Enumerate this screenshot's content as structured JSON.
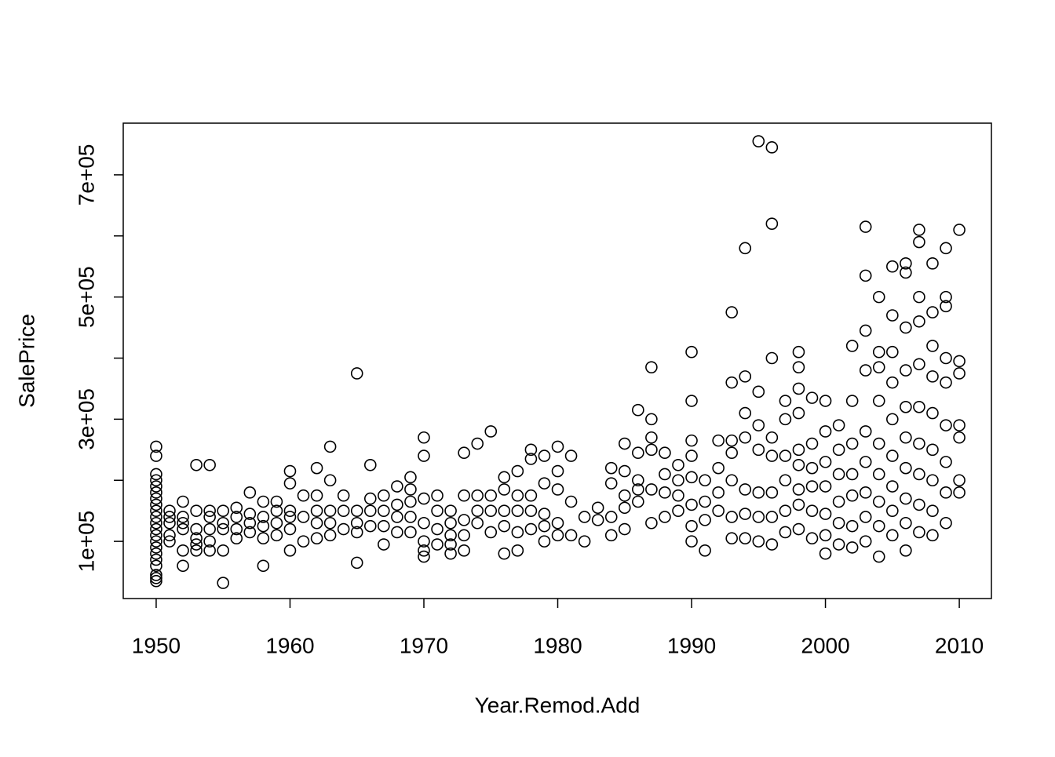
{
  "chart_data": {
    "type": "scatter",
    "x_label": "Year.Remod.Add",
    "y_label": "SalePrice",
    "xlim": [
      1947.54,
      2012.4
    ],
    "ylim": [
      6410,
      784615
    ],
    "xticks": [
      1950,
      1960,
      1970,
      1980,
      1990,
      2000,
      2010
    ],
    "yticks": [
      {
        "value": 100000,
        "label": "1e+05"
      },
      {
        "value": 200000,
        "label": null
      },
      {
        "value": 300000,
        "label": "3e+05"
      },
      {
        "value": 400000,
        "label": null
      },
      {
        "value": 500000,
        "label": "5e+05"
      },
      {
        "value": 600000,
        "label": null
      },
      {
        "value": 700000,
        "label": "7e+05"
      }
    ],
    "color": "#000000",
    "x": [
      1950,
      1950,
      1950,
      1950,
      1950,
      1950,
      1950,
      1950,
      1950,
      1950,
      1950,
      1950,
      1950,
      1950,
      1950,
      1950,
      1950,
      1950,
      1950,
      1950,
      1950,
      1951,
      1951,
      1951,
      1951,
      1951,
      1952,
      1952,
      1952,
      1952,
      1952,
      1952,
      1953,
      1953,
      1953,
      1953,
      1953,
      1953,
      1954,
      1954,
      1954,
      1954,
      1954,
      1954,
      1955,
      1955,
      1955,
      1955,
      1955,
      1956,
      1956,
      1956,
      1956,
      1957,
      1957,
      1957,
      1957,
      1958,
      1958,
      1958,
      1958,
      1958,
      1959,
      1959,
      1959,
      1959,
      1960,
      1960,
      1960,
      1960,
      1960,
      1960,
      1961,
      1961,
      1961,
      1962,
      1962,
      1962,
      1962,
      1962,
      1963,
      1963,
      1963,
      1963,
      1963,
      1964,
      1964,
      1964,
      1965,
      1965,
      1965,
      1965,
      1965,
      1966,
      1966,
      1966,
      1966,
      1967,
      1967,
      1967,
      1967,
      1968,
      1968,
      1968,
      1968,
      1969,
      1969,
      1969,
      1969,
      1969,
      1970,
      1970,
      1970,
      1970,
      1970,
      1970,
      1970,
      1971,
      1971,
      1971,
      1971,
      1972,
      1972,
      1972,
      1972,
      1972,
      1973,
      1973,
      1973,
      1973,
      1973,
      1974,
      1974,
      1974,
      1974,
      1975,
      1975,
      1975,
      1975,
      1976,
      1976,
      1976,
      1976,
      1976,
      1977,
      1977,
      1977,
      1977,
      1977,
      1978,
      1978,
      1978,
      1978,
      1978,
      1979,
      1979,
      1979,
      1979,
      1979,
      1980,
      1980,
      1980,
      1980,
      1980,
      1981,
      1981,
      1981,
      1982,
      1982,
      1983,
      1983,
      1984,
      1984,
      1984,
      1984,
      1985,
      1985,
      1985,
      1985,
      1985,
      1986,
      1986,
      1986,
      1986,
      1986,
      1987,
      1987,
      1987,
      1987,
      1987,
      1987,
      1988,
      1988,
      1988,
      1988,
      1989,
      1989,
      1989,
      1989,
      1990,
      1990,
      1990,
      1990,
      1990,
      1990,
      1990,
      1990,
      1991,
      1991,
      1991,
      1991,
      1992,
      1992,
      1992,
      1992,
      1993,
      1993,
      1993,
      1993,
      1993,
      1993,
      1993,
      1994,
      1994,
      1994,
      1994,
      1994,
      1994,
      1994,
      1995,
      1995,
      1995,
      1995,
      1995,
      1995,
      1995,
      1996,
      1996,
      1996,
      1996,
      1996,
      1996,
      1996,
      1996,
      1997,
      1997,
      1997,
      1997,
      1997,
      1997,
      1998,
      1998,
      1998,
      1998,
      1998,
      1998,
      1998,
      1998,
      1998,
      1999,
      1999,
      1999,
      1999,
      1999,
      1999,
      2000,
      2000,
      2000,
      2000,
      2000,
      2000,
      2000,
      2001,
      2001,
      2001,
      2001,
      2001,
      2001,
      2002,
      2002,
      2002,
      2002,
      2002,
      2002,
      2002,
      2003,
      2003,
      2003,
      2003,
      2003,
      2003,
      2003,
      2003,
      2003,
      2004,
      2004,
      2004,
      2004,
      2004,
      2004,
      2004,
      2004,
      2004,
      2005,
      2005,
      2005,
      2005,
      2005,
      2005,
      2005,
      2005,
      2005,
      2006,
      2006,
      2006,
      2006,
      2006,
      2006,
      2006,
      2006,
      2006,
      2006,
      2007,
      2007,
      2007,
      2007,
      2007,
      2007,
      2007,
      2007,
      2007,
      2007,
      2008,
      2008,
      2008,
      2008,
      2008,
      2008,
      2008,
      2008,
      2008,
      2009,
      2009,
      2009,
      2009,
      2009,
      2009,
      2009,
      2009,
      2009,
      2010,
      2010,
      2010,
      2010,
      2010,
      2010,
      2010
    ],
    "y": [
      35000,
      40000,
      45000,
      60000,
      70000,
      80000,
      90000,
      100000,
      110000,
      120000,
      130000,
      140000,
      150000,
      160000,
      170000,
      180000,
      190000,
      200000,
      210000,
      240000,
      255000,
      100000,
      110000,
      130000,
      140000,
      150000,
      60000,
      85000,
      120000,
      130000,
      140000,
      165000,
      85000,
      95000,
      105000,
      120000,
      150000,
      225000,
      85000,
      100000,
      120000,
      140000,
      150000,
      225000,
      32000,
      85000,
      120000,
      130000,
      150000,
      105000,
      120000,
      140000,
      155000,
      115000,
      130000,
      145000,
      180000,
      60000,
      105000,
      125000,
      140000,
      165000,
      110000,
      130000,
      150000,
      165000,
      85000,
      120000,
      140000,
      150000,
      195000,
      215000,
      100000,
      140000,
      175000,
      105000,
      130000,
      150000,
      175000,
      220000,
      110000,
      130000,
      150000,
      200000,
      255000,
      120000,
      150000,
      175000,
      65000,
      115000,
      130000,
      150000,
      375000,
      125000,
      150000,
      170000,
      225000,
      95000,
      125000,
      150000,
      175000,
      115000,
      140000,
      160000,
      190000,
      115000,
      140000,
      165000,
      185000,
      205000,
      75000,
      85000,
      100000,
      130000,
      170000,
      240000,
      270000,
      95000,
      120000,
      150000,
      175000,
      80000,
      95000,
      110000,
      130000,
      150000,
      85000,
      110000,
      135000,
      175000,
      245000,
      130000,
      150000,
      175000,
      260000,
      115000,
      150000,
      175000,
      280000,
      80000,
      125000,
      150000,
      185000,
      205000,
      85000,
      115000,
      150000,
      175000,
      215000,
      120000,
      150000,
      175000,
      235000,
      250000,
      100000,
      125000,
      145000,
      195000,
      240000,
      110000,
      130000,
      185000,
      215000,
      255000,
      110000,
      165000,
      240000,
      100000,
      140000,
      135000,
      155000,
      110000,
      140000,
      195000,
      220000,
      120000,
      155000,
      175000,
      215000,
      260000,
      165000,
      185000,
      200000,
      245000,
      315000,
      130000,
      185000,
      250000,
      270000,
      300000,
      385000,
      140000,
      180000,
      210000,
      245000,
      150000,
      175000,
      200000,
      225000,
      100000,
      125000,
      160000,
      205000,
      240000,
      265000,
      330000,
      410000,
      85000,
      135000,
      165000,
      200000,
      150000,
      180000,
      220000,
      265000,
      105000,
      140000,
      200000,
      245000,
      265000,
      360000,
      475000,
      105000,
      145000,
      185000,
      270000,
      310000,
      370000,
      580000,
      100000,
      140000,
      180000,
      250000,
      290000,
      345000,
      755000,
      95000,
      140000,
      180000,
      240000,
      270000,
      400000,
      620000,
      745000,
      115000,
      150000,
      200000,
      240000,
      300000,
      330000,
      120000,
      160000,
      185000,
      225000,
      250000,
      310000,
      350000,
      385000,
      410000,
      105000,
      150000,
      190000,
      220000,
      260000,
      335000,
      80000,
      110000,
      145000,
      190000,
      230000,
      280000,
      330000,
      95000,
      130000,
      165000,
      210000,
      250000,
      290000,
      90000,
      125000,
      175000,
      210000,
      260000,
      330000,
      420000,
      100000,
      140000,
      180000,
      230000,
      280000,
      380000,
      445000,
      535000,
      615000,
      75000,
      125000,
      165000,
      210000,
      260000,
      330000,
      385000,
      410000,
      500000,
      110000,
      150000,
      190000,
      240000,
      300000,
      360000,
      410000,
      470000,
      550000,
      85000,
      130000,
      170000,
      220000,
      270000,
      320000,
      380000,
      450000,
      540000,
      555000,
      115000,
      160000,
      210000,
      260000,
      320000,
      390000,
      460000,
      500000,
      590000,
      610000,
      110000,
      150000,
      200000,
      250000,
      310000,
      370000,
      420000,
      475000,
      555000,
      130000,
      180000,
      230000,
      290000,
      360000,
      400000,
      485000,
      500000,
      580000,
      180000,
      200000,
      270000,
      290000,
      375000,
      395000,
      610000
    ]
  }
}
